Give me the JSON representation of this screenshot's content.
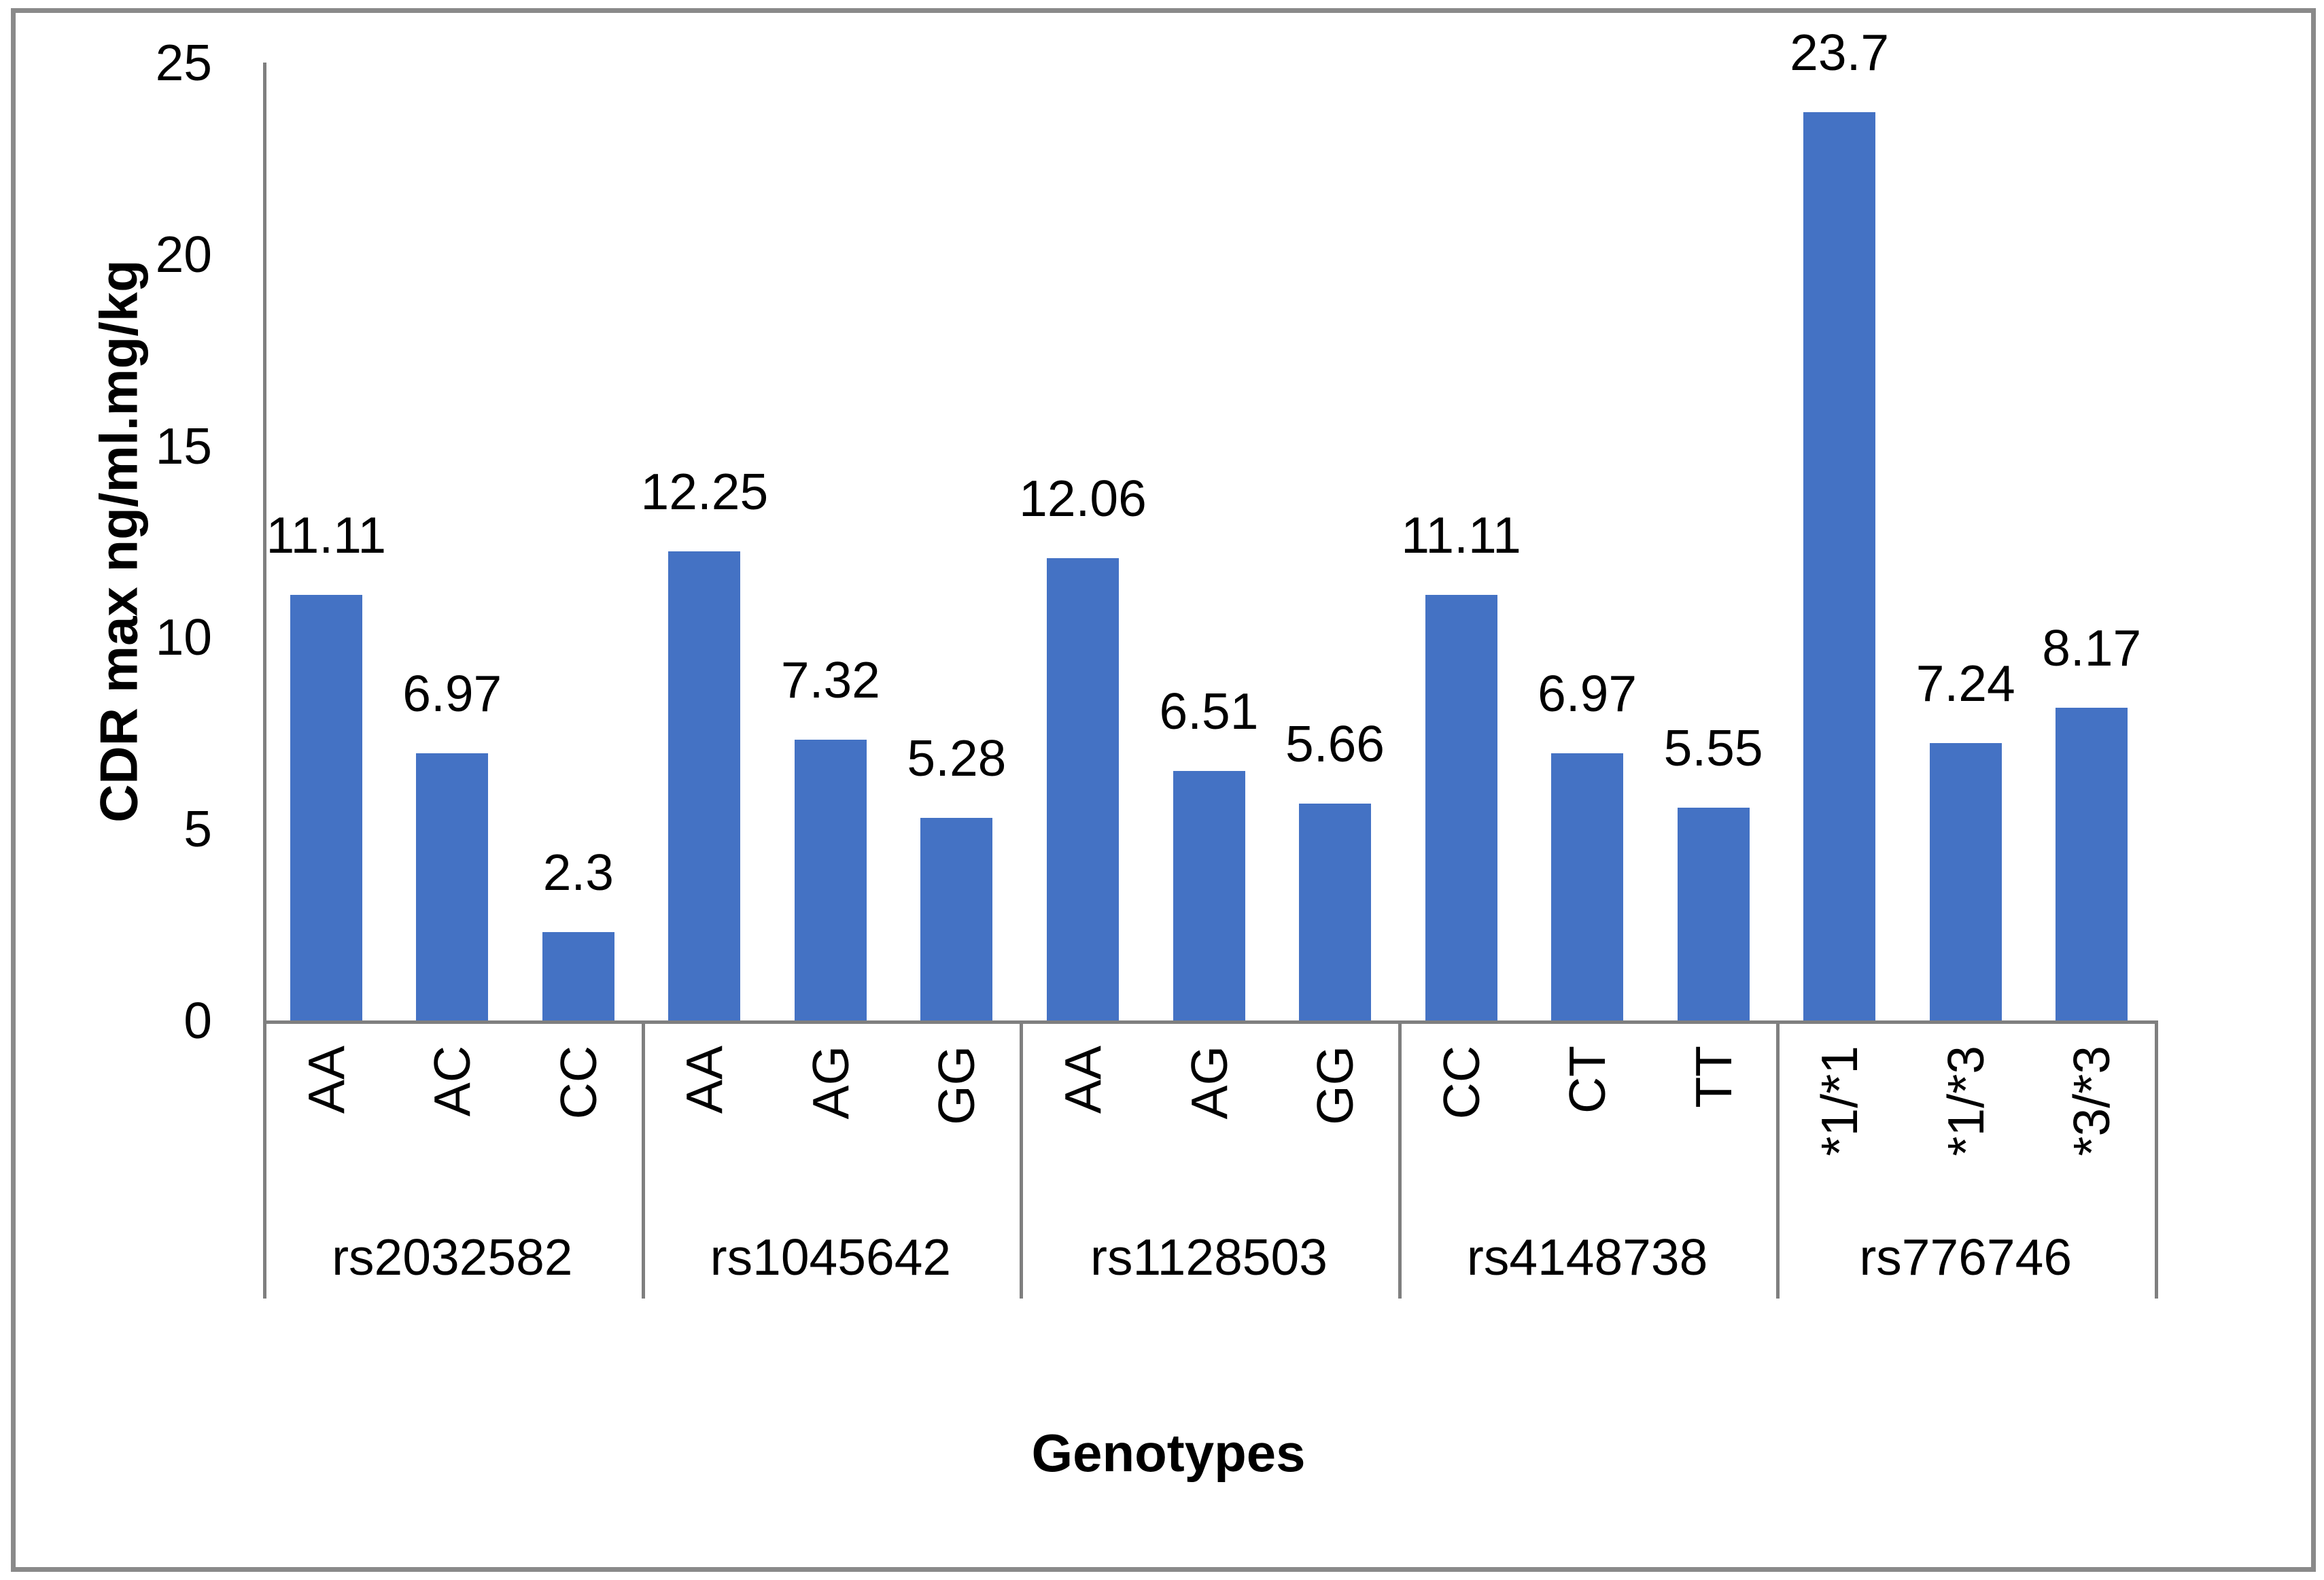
{
  "chart_data": {
    "type": "bar",
    "title": "",
    "xlabel": "Genotypes",
    "ylabel": "CDR max ng/ml.mg/kg",
    "ylim": [
      0,
      25
    ],
    "yticks": [
      0,
      5,
      10,
      15,
      20,
      25
    ],
    "grid": "off",
    "legend": "none",
    "bar_color": "#4472C4",
    "axis_color": "#7f7f7f",
    "frame_color": "#8a8a8a",
    "data_labels_shown": true,
    "groups": [
      {
        "label": "rs2032582",
        "categories": [
          "AA",
          "AC",
          "CC"
        ],
        "values": [
          11.11,
          6.97,
          2.3
        ]
      },
      {
        "label": "rs1045642",
        "categories": [
          "AA",
          "AG",
          "GG"
        ],
        "values": [
          12.25,
          7.32,
          5.28
        ]
      },
      {
        "label": "rs1128503",
        "categories": [
          "AA",
          "AG",
          "GG"
        ],
        "values": [
          12.06,
          6.51,
          5.66
        ]
      },
      {
        "label": "rs4148738",
        "categories": [
          "CC",
          "CT",
          "TT"
        ],
        "values": [
          11.11,
          6.97,
          5.55
        ]
      },
      {
        "label": "rs776746",
        "categories": [
          "*1/*1",
          "*1/*3",
          "*3/*3"
        ],
        "values": [
          23.7,
          7.24,
          8.17
        ]
      }
    ]
  }
}
